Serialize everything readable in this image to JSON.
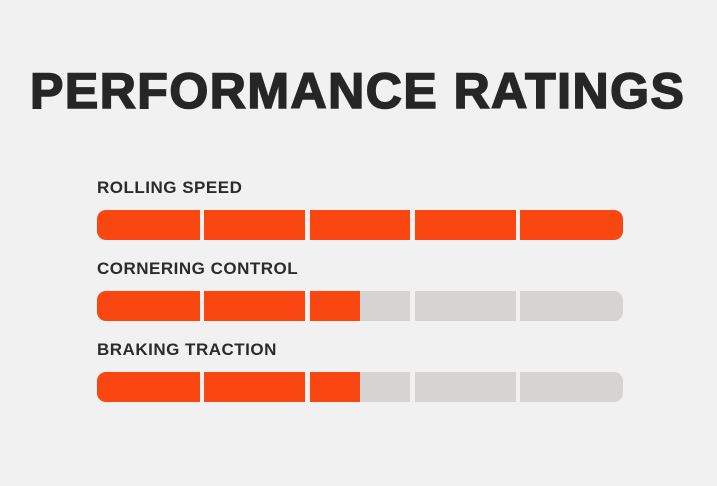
{
  "title": "PERFORMANCE RATINGS",
  "colors": {
    "background": "#F2F1F1",
    "segment_filled": "#FA4711",
    "segment_empty": "#D5D4D2",
    "title_text": "#262626",
    "label_text": "#2B2B2B"
  },
  "chart_data": {
    "type": "bar",
    "orientation": "horizontal",
    "title": "PERFORMANCE RATINGS",
    "categories": [
      "ROLLING SPEED",
      "CORNERING CONTROL",
      "BRAKING TRACTION"
    ],
    "values": [
      5,
      2.5,
      2.5
    ],
    "ylim": [
      0,
      5
    ],
    "segments": 5,
    "xlabel": "",
    "ylabel": "",
    "legend": "none",
    "grid": false,
    "notes": "Each bar is divided into 5 segments; filled portion shown in orange, remainder in gray."
  }
}
